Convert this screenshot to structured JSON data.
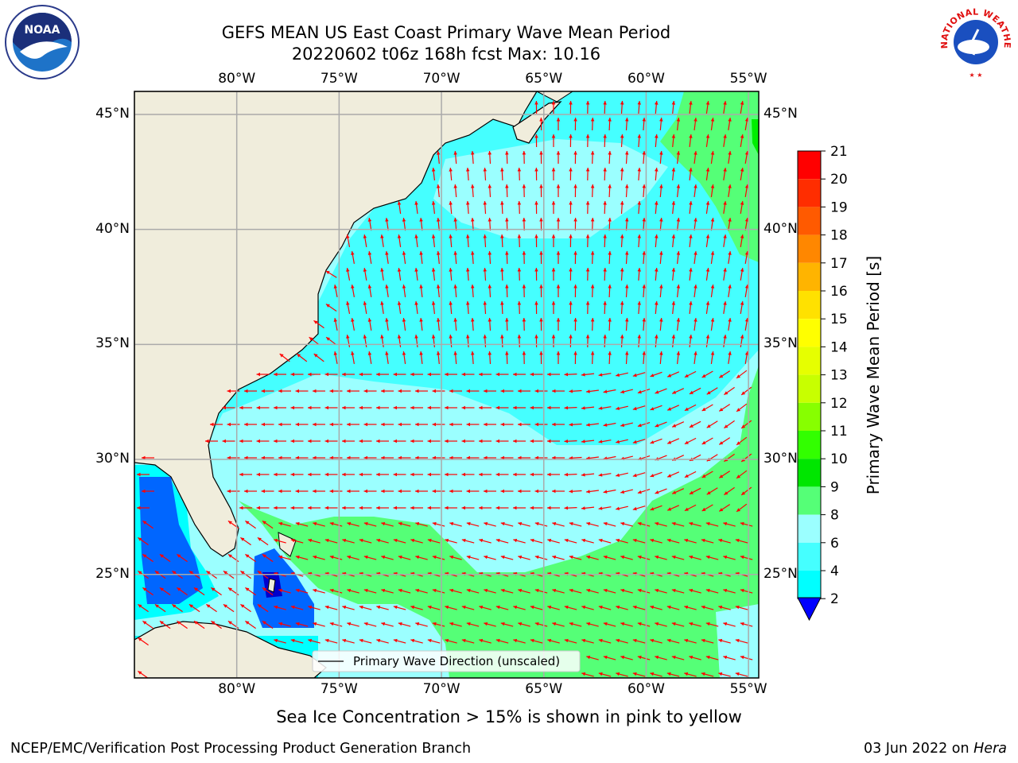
{
  "header": {
    "title_line1": "GEFS MEAN US East Coast Primary Wave Mean Period",
    "title_line2": "20220602 t06z 168h fcst   Max: 10.16"
  },
  "logos": {
    "left": {
      "text": "NOAA",
      "name": "noaa-logo"
    },
    "right": {
      "text": "NATIONAL WEATHER SERVICE",
      "name": "nws-logo"
    }
  },
  "map": {
    "lon_ticks": [
      "80°W",
      "75°W",
      "70°W",
      "65°W",
      "60°W",
      "55°W"
    ],
    "lat_ticks": [
      "45°N",
      "40°N",
      "35°N",
      "30°N",
      "25°N"
    ],
    "lon_range": [
      -85,
      -54.5
    ],
    "lat_range": [
      20.5,
      46
    ],
    "legend_text": "Primary Wave Direction (unscaled)",
    "colors": {
      "land": "#f0eddc",
      "c2": "#0066ff",
      "c4": "#00ffff",
      "c6": "#45ffff",
      "c8": "#9bffff",
      "c9": "#55ff77",
      "c10": "#00ee00",
      "arrow": "#ff0000",
      "grid": "#aaaaaa"
    }
  },
  "colorbar": {
    "label": "Primary Wave Mean Period [s]",
    "levels": [
      "21",
      "20",
      "19",
      "18",
      "17",
      "16",
      "15",
      "14",
      "13",
      "12",
      "11",
      "10",
      "9",
      "8",
      "6",
      "4",
      "2"
    ],
    "colors": [
      "#ff0000",
      "#ff2d00",
      "#ff5a00",
      "#ff8700",
      "#ffb400",
      "#ffe100",
      "#ffff00",
      "#e6ff00",
      "#c8ff00",
      "#87ff00",
      "#32ff00",
      "#00e600",
      "#55ff77",
      "#9bffff",
      "#45ffff",
      "#00ffff",
      "#0066ff"
    ]
  },
  "footer": {
    "note": "Sea Ice Concentration > 15% is shown in pink to yellow",
    "left": "NCEP/EMC/Verification Post Processing Product Generation Branch",
    "right_date": "03 Jun 2022 on ",
    "right_host": "Hera"
  }
}
